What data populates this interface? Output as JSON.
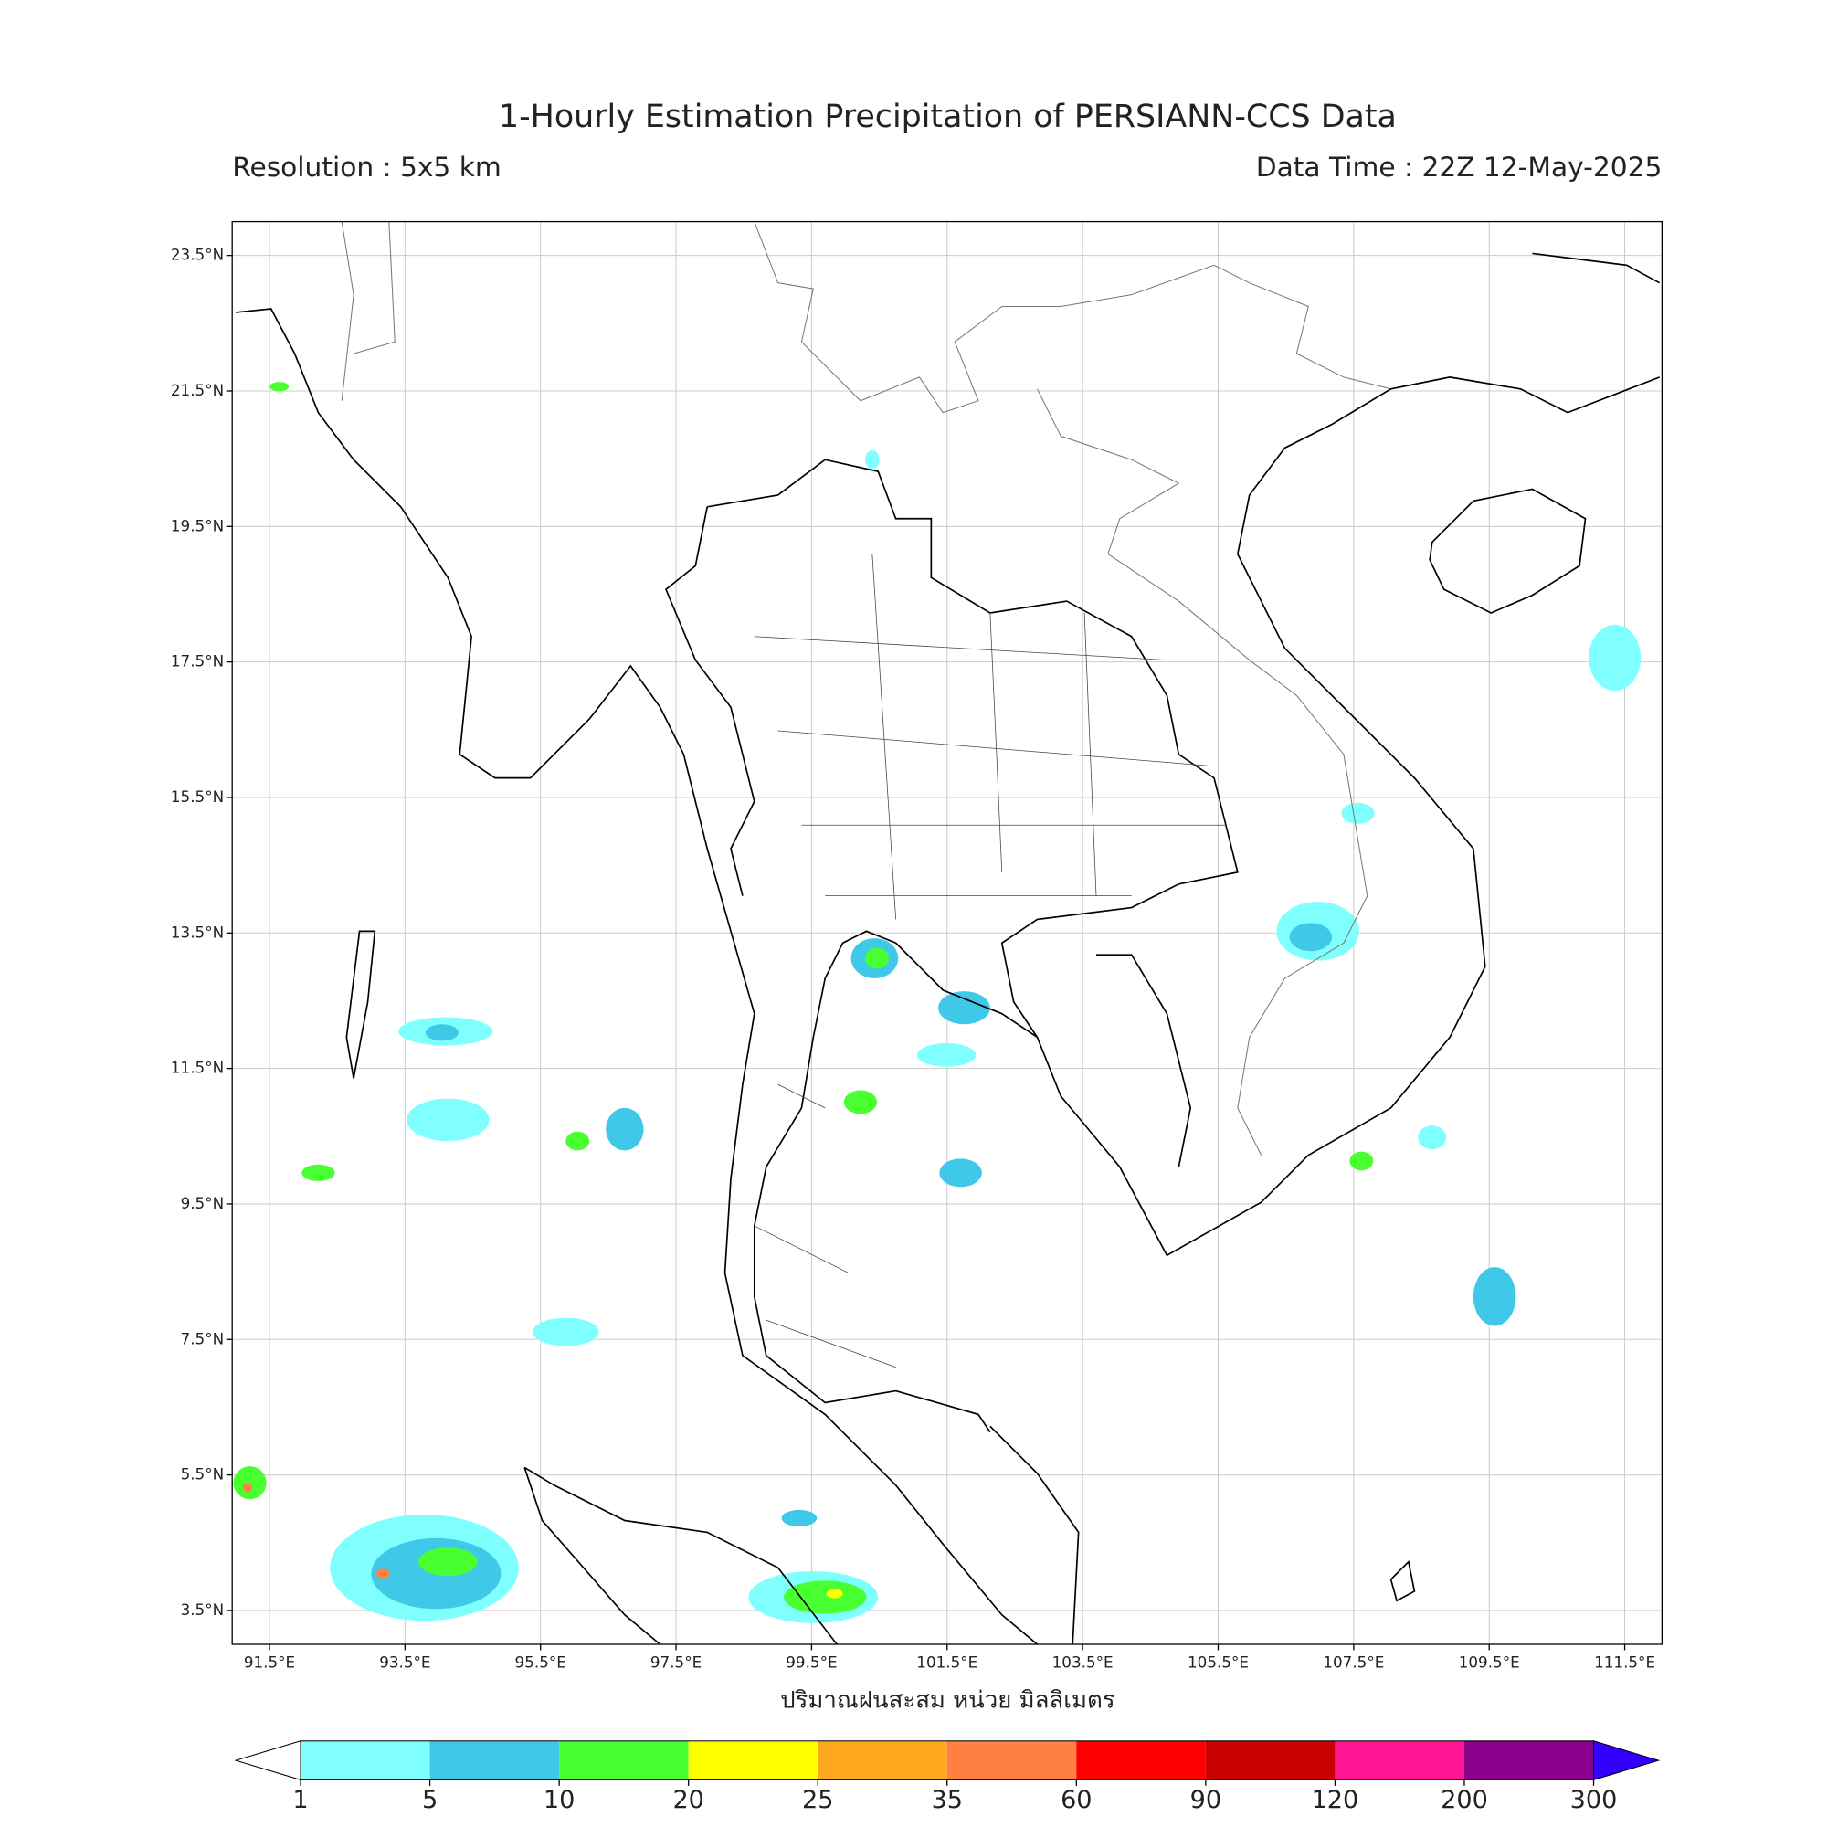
{
  "header": {
    "title": "1-Hourly Estimation Precipitation of PERSIANN-CCS Data",
    "resolution": "Resolution : 5x5 km",
    "data_time": "Data Time : 22Z 12-May-2025"
  },
  "map": {
    "xlim": [
      90.95,
      112.05
    ],
    "ylim": [
      3.0,
      24.0
    ],
    "xticks": [
      {
        "value": 91.5,
        "label": "91.5°E"
      },
      {
        "value": 93.5,
        "label": "93.5°E"
      },
      {
        "value": 95.5,
        "label": "95.5°E"
      },
      {
        "value": 97.5,
        "label": "97.5°E"
      },
      {
        "value": 99.5,
        "label": "99.5°E"
      },
      {
        "value": 101.5,
        "label": "101.5°E"
      },
      {
        "value": 103.5,
        "label": "103.5°E"
      },
      {
        "value": 105.5,
        "label": "105.5°E"
      },
      {
        "value": 107.5,
        "label": "107.5°E"
      },
      {
        "value": 109.5,
        "label": "109.5°E"
      },
      {
        "value": 111.5,
        "label": "111.5°E"
      }
    ],
    "yticks": [
      {
        "value": 3.5,
        "label": "3.5°N"
      },
      {
        "value": 5.5,
        "label": "5.5°N"
      },
      {
        "value": 7.5,
        "label": "7.5°N"
      },
      {
        "value": 9.5,
        "label": "9.5°N"
      },
      {
        "value": 11.5,
        "label": "11.5°N"
      },
      {
        "value": 13.5,
        "label": "13.5°N"
      },
      {
        "value": 15.5,
        "label": "15.5°N"
      },
      {
        "value": 17.5,
        "label": "17.5°N"
      },
      {
        "value": 19.5,
        "label": "19.5°N"
      },
      {
        "value": 21.5,
        "label": "21.5°N"
      },
      {
        "value": 23.5,
        "label": "23.5°N"
      }
    ],
    "grid": true,
    "xlabel": "ปริมาณฝนสะสม หน่วย มิลลิเมตร"
  },
  "colorbar": {
    "levels": [
      1,
      5,
      10,
      20,
      25,
      35,
      60,
      90,
      120,
      200,
      300
    ],
    "colors": [
      "#80ffff",
      "#40c8e8",
      "#48ff30",
      "#ffff00",
      "#ffa820",
      "#ff8040",
      "#ff0000",
      "#c80000",
      "#ff1493",
      "#8b008b"
    ],
    "under_color": "#ffffff",
    "over_color": "#3300ff"
  }
}
